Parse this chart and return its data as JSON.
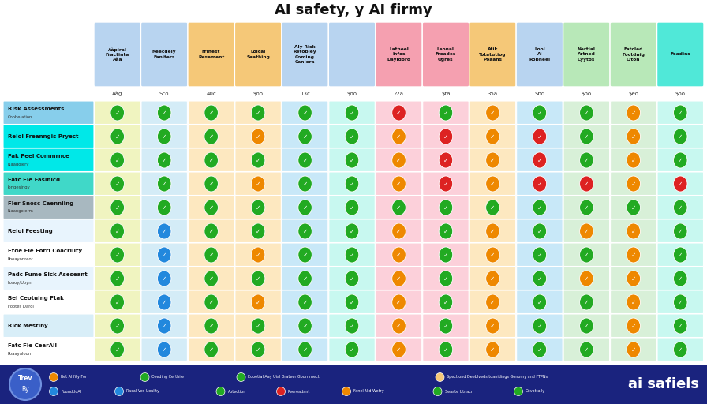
{
  "title": "AI safety, y AI firmy",
  "title_fontsize": 13,
  "background_color": "#ffffff",
  "footer_bg": "#1a237e",
  "columns": [
    {
      "name": "Aàpiral\nFractinta\nAàa",
      "score": "Aàg",
      "bg": "#b8d4f0"
    },
    {
      "name": "Neecdely\nFaniters",
      "score": "Sco",
      "bg": "#b8d4f0"
    },
    {
      "name": "Frinest\nResement",
      "score": "40c",
      "bg": "#f5c878"
    },
    {
      "name": "Lolcal\nSaathing",
      "score": "$oo",
      "bg": "#f5c878"
    },
    {
      "name": "Aly Risk\nRetobley\nComing\nCaniora",
      "score": "13c",
      "bg": "#b8d4f0"
    },
    {
      "name": "",
      "score": "$oo",
      "bg": "#b8d4f0"
    },
    {
      "name": "Latheel\nInfos\nDayidord",
      "score": "22a",
      "bg": "#f5a0b0"
    },
    {
      "name": "Leonal\nFroades\nOgres",
      "score": "$ta",
      "bg": "#f5a0b0"
    },
    {
      "name": "Atik\nTotatutiog\nPoaans",
      "score": "35a",
      "bg": "#f5c878"
    },
    {
      "name": "Lool\nAl\nRobneel",
      "score": "$bd",
      "bg": "#b8d4f0"
    },
    {
      "name": "Nertial\nArtned\nCyytos",
      "score": "$bo",
      "bg": "#b8e8b8"
    },
    {
      "name": "Fatcled\nFoctdnig\nCiton",
      "score": "$eo",
      "bg": "#b8e8b8"
    },
    {
      "name": "Feadins",
      "score": "$oo",
      "bg": "#50e8d8"
    }
  ],
  "col_cell_colors": [
    "#f0f4c0",
    "#d4ecf7",
    "#fde8c0",
    "#fde8c0",
    "#c8e8f8",
    "#c8f8f0",
    "#fcd0da",
    "#fcd0da",
    "#fde8c0",
    "#c8e8f8",
    "#d8f0d8",
    "#d8f0d8",
    "#c8f8f0"
  ],
  "rows": [
    {
      "label": "Risk Assessments",
      "sublabel": "Coobelation",
      "bg": "#87ceeb",
      "checks": [
        "g",
        "g",
        "g",
        "g",
        "g",
        "g",
        "r",
        "g",
        "o",
        "g",
        "g",
        "o",
        "g"
      ]
    },
    {
      "label": "Relol Freanngis Pryect",
      "sublabel": "",
      "bg": "#00e8e8",
      "checks": [
        "g",
        "g",
        "g",
        "o",
        "g",
        "g",
        "o",
        "r",
        "o",
        "r",
        "g",
        "o",
        "g"
      ]
    },
    {
      "label": "Fak Peel Commrnce",
      "sublabel": "Liaagolery",
      "bg": "#00e8e8",
      "checks": [
        "g",
        "g",
        "g",
        "g",
        "g",
        "g",
        "o",
        "r",
        "o",
        "r",
        "g",
        "o",
        "g"
      ]
    },
    {
      "label": "Fatc Fle Fasinicd",
      "sublabel": "Iongesingy",
      "bg": "#40d8c8",
      "checks": [
        "g",
        "g",
        "g",
        "o",
        "g",
        "g",
        "o",
        "r",
        "o",
        "r",
        "r",
        "o",
        "r"
      ]
    },
    {
      "label": "Fler Snosc Caenniing",
      "sublabel": "Liaangolerm",
      "bg": "#a8b8c0",
      "checks": [
        "g",
        "g",
        "g",
        "g",
        "g",
        "g",
        "g",
        "g",
        "g",
        "g",
        "g",
        "g",
        "g"
      ]
    },
    {
      "label": "Relol Feesting",
      "sublabel": "",
      "bg": "#e8f4fd",
      "checks": [
        "g",
        "b",
        "g",
        "g",
        "g",
        "g",
        "o",
        "g",
        "o",
        "g",
        "o",
        "o",
        "g"
      ]
    },
    {
      "label": "Ftde Fle Forrl Coacrility",
      "sublabel": "Pooayonreot",
      "bg": "#ffffff",
      "checks": [
        "g",
        "b",
        "g",
        "o",
        "g",
        "g",
        "o",
        "g",
        "o",
        "g",
        "g",
        "o",
        "g"
      ]
    },
    {
      "label": "Padc Fume Sick Aseseant",
      "sublabel": "Loaoy/Uoyn",
      "bg": "#e8f4fd",
      "checks": [
        "g",
        "b",
        "g",
        "g",
        "g",
        "g",
        "o",
        "g",
        "o",
        "g",
        "o",
        "o",
        "g"
      ]
    },
    {
      "label": "Bel Ceotuing Ftak",
      "sublabel": "Footes Darol",
      "bg": "#ffffff",
      "checks": [
        "g",
        "b",
        "g",
        "o",
        "g",
        "g",
        "o",
        "g",
        "o",
        "g",
        "g",
        "o",
        "g"
      ]
    },
    {
      "label": "Rick Mestiny",
      "sublabel": "",
      "bg": "#d8eef8",
      "checks": [
        "g",
        "b",
        "g",
        "g",
        "g",
        "g",
        "o",
        "g",
        "o",
        "g",
        "g",
        "o",
        "g"
      ]
    },
    {
      "label": "Fatc Fle CearAll",
      "sublabel": "Poaayaloon",
      "bg": "#ffffff",
      "checks": [
        "g",
        "b",
        "g",
        "g",
        "g",
        "g",
        "o",
        "g",
        "o",
        "g",
        "g",
        "o",
        "g"
      ]
    }
  ],
  "check_colors": {
    "g": "#22aa22",
    "r": "#dd2222",
    "o": "#ee8800",
    "b": "#2288dd"
  },
  "legend_row1": [
    {
      "color": "#ee8800",
      "text": "Ret Al fity For"
    },
    {
      "color": "#22aa22",
      "text": "Ceeding Certbile"
    },
    {
      "color": "#22aa22",
      "text": "Eooetial Aay Uial Brateer Gournrnect"
    },
    {
      "color": "#f5c878",
      "text": "Spectiond Deeblveds toanidings Gonomy and FTPNs"
    }
  ],
  "legend_row2": [
    {
      "color": "#2288dd",
      "text": "FoundtloAl"
    },
    {
      "color": "#2288dd",
      "text": "Racal Ves Uoality"
    },
    {
      "color": "#22aa22",
      "text": "Aotection"
    },
    {
      "color": "#dd2222",
      "text": "Reereadant"
    },
    {
      "color": "#ee8800",
      "text": "Fanel Nid Wetry"
    },
    {
      "color": "#22aa22",
      "text": "Seaate Utnacn"
    },
    {
      "color": "#22aa22",
      "text": "Govottally"
    }
  ]
}
